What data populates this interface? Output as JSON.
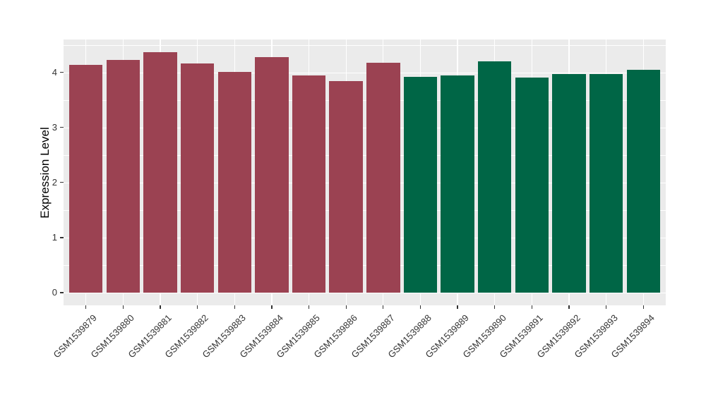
{
  "style": {
    "page_background": "#ffffff",
    "panel_background": "#EBEBEB",
    "gridline_color": "#ffffff",
    "tick_mark_color": "#333333",
    "tick_label_color": "#333333",
    "axis_title_color": "#000000"
  },
  "chart_data": {
    "type": "bar",
    "title": "",
    "xlabel": "",
    "ylabel": "Expression Level",
    "categories": [
      "GSM1539879",
      "GSM1539880",
      "GSM1539881",
      "GSM1539882",
      "GSM1539883",
      "GSM1539884",
      "GSM1539885",
      "GSM1539886",
      "GSM1539887",
      "GSM1539888",
      "GSM1539889",
      "GSM1539890",
      "GSM1539891",
      "GSM1539892",
      "GSM1539893",
      "GSM1539894"
    ],
    "values": [
      4.13,
      4.23,
      4.37,
      4.16,
      4.01,
      4.28,
      3.95,
      3.84,
      4.17,
      3.92,
      3.94,
      4.2,
      3.91,
      3.97,
      3.97,
      4.04
    ],
    "groups": [
      "g1",
      "g1",
      "g1",
      "g1",
      "g1",
      "g1",
      "g1",
      "g1",
      "g1",
      "g2",
      "g2",
      "g2",
      "g2",
      "g2",
      "g2",
      "g2"
    ],
    "group_colors": {
      "g1": "#9B4252",
      "g2": "#006646"
    },
    "yticks": [
      0,
      1,
      2,
      3,
      4
    ],
    "yticks_minor": [
      0.5,
      1.5,
      2.5,
      3.5,
      4.5
    ],
    "ylim": [
      -0.22,
      4.59
    ],
    "grid": true,
    "legend": false,
    "bar_orientation": "vertical",
    "x_label_rotation_deg": 45
  }
}
